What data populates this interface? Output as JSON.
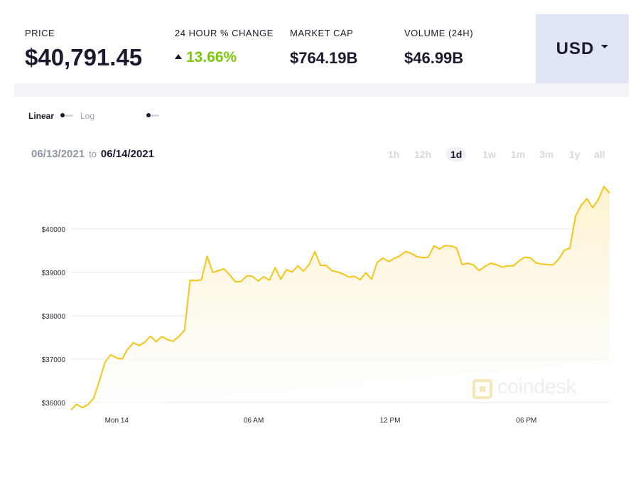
{
  "stats": {
    "price_label": "PRICE",
    "price_value": "$40,791.45",
    "change_label": "24 HOUR % CHANGE",
    "change_value": "13.66%",
    "market_cap_label": "MARKET CAP",
    "market_cap_value": "$764.19B",
    "volume_label": "VOLUME (24H)",
    "volume_value": "$46.99B"
  },
  "currency": {
    "label": "USD"
  },
  "scale": {
    "linear_label": "Linear",
    "log_label": "Log"
  },
  "date_range": {
    "from": "06/13/2021",
    "to_word": "to",
    "to": "06/14/2021"
  },
  "range_tabs": [
    "1h",
    "12h",
    "1d",
    "1w",
    "1m",
    "3m",
    "1y",
    "all"
  ],
  "active_range": "1d",
  "watermark": "coindesk",
  "colors": {
    "line": "#f5c518",
    "area_top": "#fdf1cf",
    "gain": "#7ac70c",
    "grid": "#e6e8ee",
    "currency_bg": "#dfe5f4"
  },
  "chart_data": {
    "type": "area",
    "ylabel": "",
    "xlabel": "",
    "ylim": [
      35800,
      40950
    ],
    "xlim": [
      0,
      79
    ],
    "yticks": [
      {
        "value": 36000,
        "label": "$36000"
      },
      {
        "value": 37000,
        "label": "$37000"
      },
      {
        "value": 38000,
        "label": "$38000"
      },
      {
        "value": 39000,
        "label": "$39000"
      },
      {
        "value": 40000,
        "label": "$40000"
      }
    ],
    "xticks": [
      {
        "value": 6.7,
        "label": "Mon 14"
      },
      {
        "value": 26.8,
        "label": "06 AM"
      },
      {
        "value": 46.8,
        "label": "12 PM"
      },
      {
        "value": 66.8,
        "label": "06 PM"
      }
    ],
    "grid": true,
    "values": [
      35830,
      35960,
      35880,
      35950,
      36100,
      36500,
      36930,
      37100,
      37030,
      37000,
      37230,
      37380,
      37310,
      37390,
      37530,
      37400,
      37520,
      37450,
      37410,
      37520,
      37660,
      38820,
      38810,
      38830,
      39370,
      39000,
      39040,
      39080,
      38940,
      38780,
      38790,
      38920,
      38910,
      38800,
      38900,
      38820,
      39110,
      38840,
      39060,
      39010,
      39150,
      39030,
      39180,
      39480,
      39160,
      39160,
      39040,
      39010,
      38960,
      38890,
      38910,
      38830,
      38990,
      38840,
      39230,
      39330,
      39250,
      39320,
      39380,
      39480,
      39440,
      39360,
      39340,
      39350,
      39610,
      39540,
      39620,
      39610,
      39560,
      39180,
      39210,
      39170,
      39040,
      39140,
      39210,
      39180,
      39120,
      39150,
      39150,
      39260,
      39350,
      39340,
      39220,
      39190,
      39180,
      39170,
      39300,
      39510,
      39560,
      40300,
      40550,
      40700,
      40490,
      40680,
      40980,
      40830
    ]
  }
}
